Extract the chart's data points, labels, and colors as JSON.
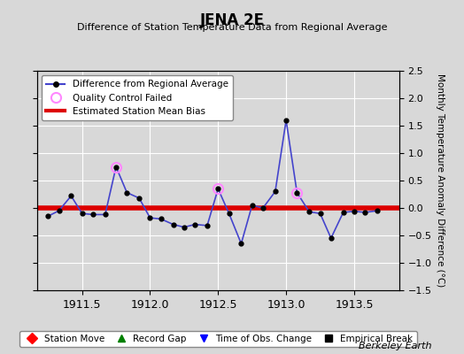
{
  "title": "JENA 2E",
  "subtitle": "Difference of Station Temperature Data from Regional Average",
  "ylabel": "Monthly Temperature Anomaly Difference (°C)",
  "xlim": [
    1911.17,
    1913.83
  ],
  "ylim": [
    -1.5,
    2.5
  ],
  "yticks": [
    -1.5,
    -1.0,
    -0.5,
    0,
    0.5,
    1.0,
    1.5,
    2.0,
    2.5
  ],
  "xticks": [
    1911.5,
    1912.0,
    1912.5,
    1913.0,
    1913.5
  ],
  "background_color": "#d8d8d8",
  "plot_bg_color": "#d8d8d8",
  "grid_color": "#ffffff",
  "bias_value": 0.0,
  "bias_color": "#dd0000",
  "line_color": "#4444cc",
  "marker_color": "#000000",
  "qc_failed_color": "#ff88ff",
  "watermark": "Berkeley Earth",
  "x_data": [
    1911.25,
    1911.33,
    1911.42,
    1911.5,
    1911.58,
    1911.67,
    1911.75,
    1911.83,
    1911.92,
    1912.0,
    1912.08,
    1912.17,
    1912.25,
    1912.33,
    1912.42,
    1912.5,
    1912.58,
    1912.67,
    1912.75,
    1912.83,
    1912.92,
    1913.0,
    1913.08,
    1913.17,
    1913.25,
    1913.33,
    1913.42,
    1913.5,
    1913.58,
    1913.67
  ],
  "y_data": [
    -0.15,
    -0.05,
    0.22,
    -0.1,
    -0.12,
    -0.12,
    0.75,
    0.28,
    0.18,
    -0.18,
    -0.2,
    -0.3,
    -0.35,
    -0.3,
    -0.32,
    0.35,
    -0.1,
    -0.65,
    0.05,
    0.0,
    0.3,
    1.6,
    0.28,
    -0.07,
    -0.1,
    -0.55,
    -0.08,
    -0.06,
    -0.08,
    -0.05
  ],
  "qc_failed_indices": [
    6,
    15,
    22
  ],
  "legend_line_label": "Difference from Regional Average",
  "legend_qc_label": "Quality Control Failed",
  "legend_bias_label": "Estimated Station Mean Bias",
  "legend2_items": [
    "Station Move",
    "Record Gap",
    "Time of Obs. Change",
    "Empirical Break"
  ],
  "legend2_colors": [
    "red",
    "green",
    "blue",
    "black"
  ],
  "legend2_markers": [
    "D",
    "^",
    "v",
    "s"
  ]
}
